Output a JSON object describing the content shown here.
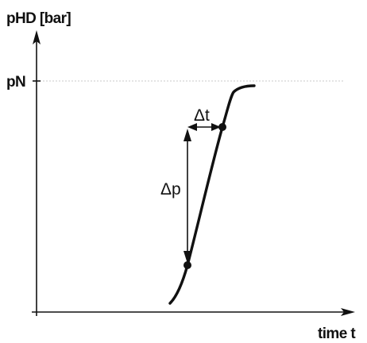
{
  "y_axis_label": "pHD [bar]",
  "x_axis_label": "time t",
  "nominal_pressure_label": "pN",
  "delta_t_label": "Δt",
  "delta_p_label": "Δp",
  "colors": {
    "line": "#111111",
    "reference_line": "#c8c8c8",
    "background": "#ffffff"
  }
}
